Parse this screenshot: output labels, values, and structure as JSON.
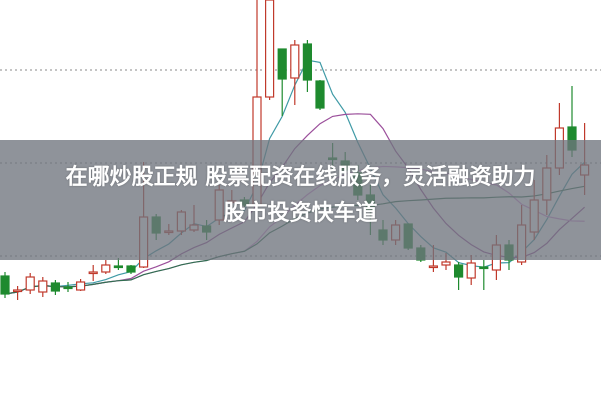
{
  "headline": {
    "line1": "在哪炒股正规 股票配资在线服务，灵活融资助力",
    "line2": "股市投资快车道"
  },
  "chart_data": {
    "type": "candlestick",
    "title": "",
    "xlabel": "",
    "ylabel": "",
    "ylim": [
      0,
      40
    ],
    "grid": "horizontal dotted",
    "gridlines": [
      33,
      23.7,
      14.4
    ],
    "colors": {
      "up": "#c0392b",
      "down": "#1e8a2e",
      "grid": "#888888",
      "ma5": "#3f9aa6",
      "ma10": "#9b4f9b",
      "ma20": "#d58fd5",
      "ma30": "#2f6e4f"
    },
    "moving_averages": [
      5,
      10,
      20,
      30
    ],
    "candles": [
      [
        12.4,
        10.6,
        12.8,
        10.2
      ],
      [
        10.9,
        11.0,
        11.4,
        10.0
      ],
      [
        11.0,
        12.3,
        12.7,
        10.6
      ],
      [
        10.8,
        11.9,
        12.3,
        10.3
      ],
      [
        11.7,
        10.9,
        12.0,
        10.5
      ],
      [
        11.3,
        11.2,
        11.8,
        10.8
      ],
      [
        11.0,
        11.8,
        12.1,
        10.9
      ],
      [
        12.7,
        12.8,
        13.5,
        11.9
      ],
      [
        12.8,
        13.5,
        14.0,
        12.6
      ],
      [
        13.4,
        13.3,
        14.2,
        13.0
      ],
      [
        13.4,
        12.8,
        13.5,
        12.6
      ],
      [
        13.3,
        18.3,
        23.8,
        13.2
      ],
      [
        18.3,
        16.7,
        18.6,
        16.0
      ],
      [
        16.8,
        16.9,
        17.6,
        16.5
      ],
      [
        16.9,
        18.8,
        19.0,
        16.5
      ],
      [
        17.0,
        17.5,
        19.5,
        16.8
      ],
      [
        17.4,
        16.8,
        18.0,
        16.0
      ],
      [
        18.0,
        21.0,
        21.5,
        17.5
      ],
      [
        19.8,
        19.9,
        21.0,
        19.5
      ],
      [
        20.0,
        19.5,
        20.3,
        19.3
      ],
      [
        19.5,
        30.3,
        40.0,
        19.5
      ],
      [
        30.3,
        40.0,
        40.0,
        30.0
      ],
      [
        35.1,
        32.1,
        35.1,
        28.4
      ],
      [
        32.2,
        35.5,
        36.0,
        29.5
      ],
      [
        35.6,
        32.0,
        36.0,
        30.8
      ],
      [
        31.9,
        29.2,
        32.0,
        29.0
      ],
      [
        24.2,
        24.1,
        25.7,
        23.0
      ],
      [
        23.9,
        23.0,
        24.8,
        21.5
      ],
      [
        22.7,
        20.5,
        23.5,
        20.0
      ],
      [
        20.5,
        19.0,
        21.5,
        16.5
      ],
      [
        17.0,
        16.0,
        18.0,
        15.5
      ],
      [
        16.0,
        17.5,
        18.0,
        15.5
      ],
      [
        17.6,
        15.2,
        17.6,
        15.0
      ],
      [
        15.2,
        14.0,
        15.5,
        13.8
      ],
      [
        13.3,
        13.4,
        15.5,
        12.8
      ],
      [
        13.5,
        13.8,
        14.7,
        13.0
      ],
      [
        13.5,
        12.3,
        13.8,
        11.0
      ],
      [
        12.2,
        13.7,
        14.5,
        11.5
      ],
      [
        13.3,
        13.2,
        14.0,
        11.0
      ],
      [
        13.0,
        15.5,
        16.5,
        12.0
      ],
      [
        15.5,
        14.0,
        16.0,
        13.0
      ],
      [
        13.8,
        17.5,
        19.5,
        13.5
      ],
      [
        16.8,
        20.0,
        22.0,
        16.0
      ],
      [
        20.0,
        23.2,
        24.5,
        18.5
      ],
      [
        23.2,
        27.2,
        29.7,
        22.5
      ],
      [
        27.3,
        25.0,
        31.4,
        24.3
      ],
      [
        22.5,
        23.5,
        27.7,
        20.5
      ]
    ]
  }
}
